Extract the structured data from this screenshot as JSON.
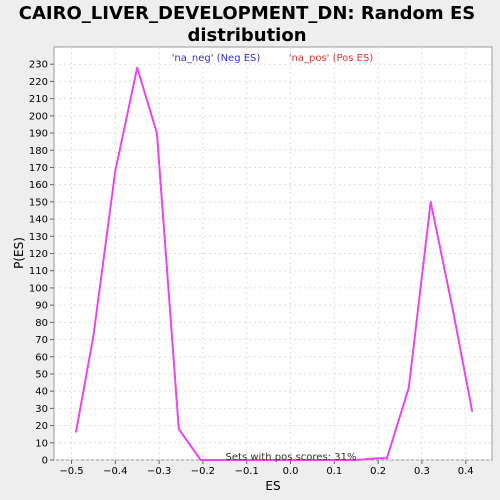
{
  "chart_data": {
    "type": "line",
    "title_line1": "CAIRO_LIVER_DEVELOPMENT_DN: Random ES",
    "title_line2": "distribution",
    "xlabel": "ES",
    "ylabel": "P(ES)",
    "xlim": [
      -0.54,
      0.46
    ],
    "ylim": [
      0,
      240
    ],
    "x_ticks": [
      -0.5,
      -0.4,
      -0.3,
      -0.2,
      -0.1,
      0.0,
      0.1,
      0.2,
      0.3,
      0.4
    ],
    "x_tick_labels": [
      "−0.5",
      "−0.4",
      "−0.3",
      "−0.2",
      "−0.1",
      "0.0",
      "0.1",
      "0.2",
      "0.3",
      "0.4"
    ],
    "y_ticks": [
      0,
      10,
      20,
      30,
      40,
      50,
      60,
      70,
      80,
      90,
      100,
      110,
      120,
      130,
      140,
      150,
      160,
      170,
      180,
      190,
      200,
      210,
      220,
      230
    ],
    "grid": true,
    "legend": [
      {
        "label": "'na_neg' (Neg ES)",
        "color": "#3333cc"
      },
      {
        "label": "'na_pos' (Pos ES)",
        "color": "#e03333"
      }
    ],
    "annotation": "Sets with pos scores: 31%",
    "series": [
      {
        "color": "#ee44ee",
        "x": [
          -0.49,
          -0.45,
          -0.4,
          -0.35,
          -0.305,
          -0.255,
          -0.205,
          -0.15,
          -0.1,
          0.0,
          0.1,
          0.15,
          0.2,
          0.22,
          0.27,
          0.32,
          0.37,
          0.415
        ],
        "y": [
          16,
          72,
          168,
          228,
          190,
          18,
          0,
          0,
          0,
          0,
          0,
          0,
          1,
          1,
          42,
          150,
          88,
          28
        ]
      }
    ]
  }
}
